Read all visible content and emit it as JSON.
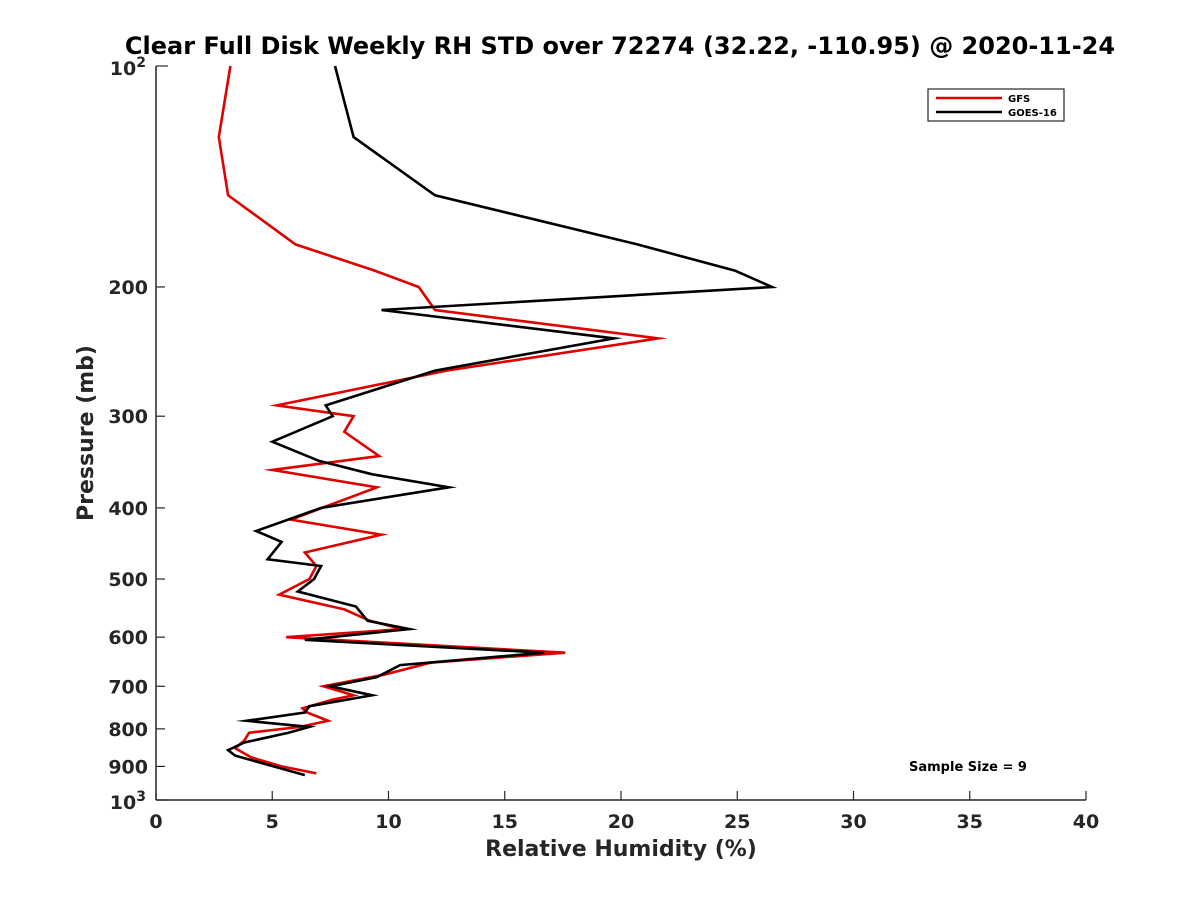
{
  "chart_data": {
    "type": "line",
    "title": "Clear Full Disk Weekly RH STD over 72274 (32.22, -110.95) @ 2020-11-24",
    "xlabel": "Relative Humidity (%)",
    "ylabel": "Pressure (mb)",
    "xlim": [
      0,
      40
    ],
    "ylim": [
      100,
      1000
    ],
    "y_scale": "log",
    "y_reversed": true,
    "x_ticks": [
      0,
      5,
      10,
      15,
      20,
      25,
      30,
      35,
      40
    ],
    "x_tick_labels": [
      "0",
      "5",
      "10",
      "15",
      "20",
      "25",
      "30",
      "35",
      "40"
    ],
    "y_ticks": [
      200,
      300,
      400,
      500,
      600,
      700,
      800,
      900
    ],
    "y_tick_labels": [
      "200",
      "300",
      "400",
      "500",
      "600",
      "700",
      "800",
      "900"
    ],
    "y_decade_ticks": [
      {
        "value": 100,
        "base": "10",
        "exp": "2"
      },
      {
        "value": 1000,
        "base": "10",
        "exp": "3"
      }
    ],
    "grid": false,
    "legend_position": "top-right",
    "annotation": "Sample Size = 9",
    "series": [
      {
        "name": "GFS",
        "color": "#e00000",
        "points": [
          [
            3.2,
            100
          ],
          [
            2.7,
            125
          ],
          [
            3.1,
            150
          ],
          [
            6.0,
            175
          ],
          [
            9.4,
            190
          ],
          [
            11.3,
            200
          ],
          [
            12.0,
            215
          ],
          [
            21.6,
            235
          ],
          [
            12.5,
            260
          ],
          [
            5.2,
            290
          ],
          [
            8.5,
            300
          ],
          [
            8.1,
            315
          ],
          [
            9.6,
            340
          ],
          [
            5.0,
            355
          ],
          [
            9.5,
            375
          ],
          [
            5.8,
            415
          ],
          [
            9.7,
            435
          ],
          [
            6.4,
            460
          ],
          [
            6.9,
            480
          ],
          [
            6.6,
            500
          ],
          [
            5.3,
            525
          ],
          [
            8.1,
            550
          ],
          [
            9.2,
            570
          ],
          [
            10.6,
            585
          ],
          [
            5.6,
            600
          ],
          [
            17.6,
            630
          ],
          [
            11.8,
            650
          ],
          [
            9.8,
            675
          ],
          [
            7.2,
            700
          ],
          [
            8.5,
            720
          ],
          [
            7.6,
            730
          ],
          [
            6.3,
            750
          ],
          [
            6.5,
            760
          ],
          [
            7.4,
            780
          ],
          [
            6.2,
            795
          ],
          [
            4.0,
            810
          ],
          [
            3.8,
            830
          ],
          [
            3.4,
            850
          ],
          [
            4.1,
            875
          ],
          [
            5.4,
            900
          ],
          [
            6.9,
            920
          ]
        ]
      },
      {
        "name": "GOES-16",
        "color": "#000000",
        "points": [
          [
            7.7,
            100
          ],
          [
            8.5,
            125
          ],
          [
            12.0,
            150
          ],
          [
            20.7,
            175
          ],
          [
            24.9,
            190
          ],
          [
            26.5,
            200
          ],
          [
            9.7,
            215
          ],
          [
            19.7,
            235
          ],
          [
            12.0,
            260
          ],
          [
            7.3,
            290
          ],
          [
            7.6,
            300
          ],
          [
            5.0,
            325
          ],
          [
            7.0,
            345
          ],
          [
            9.3,
            360
          ],
          [
            12.6,
            375
          ],
          [
            7.1,
            400
          ],
          [
            4.3,
            430
          ],
          [
            5.4,
            445
          ],
          [
            4.8,
            470
          ],
          [
            7.1,
            480
          ],
          [
            6.8,
            500
          ],
          [
            6.1,
            520
          ],
          [
            8.6,
            545
          ],
          [
            9.1,
            570
          ],
          [
            10.9,
            585
          ],
          [
            6.4,
            605
          ],
          [
            16.7,
            630
          ],
          [
            10.5,
            655
          ],
          [
            9.5,
            680
          ],
          [
            7.5,
            700
          ],
          [
            9.3,
            720
          ],
          [
            6.6,
            745
          ],
          [
            6.4,
            760
          ],
          [
            3.9,
            780
          ],
          [
            6.6,
            795
          ],
          [
            5.7,
            810
          ],
          [
            3.8,
            835
          ],
          [
            3.1,
            855
          ],
          [
            3.4,
            870
          ],
          [
            6.4,
            925
          ]
        ]
      }
    ]
  }
}
